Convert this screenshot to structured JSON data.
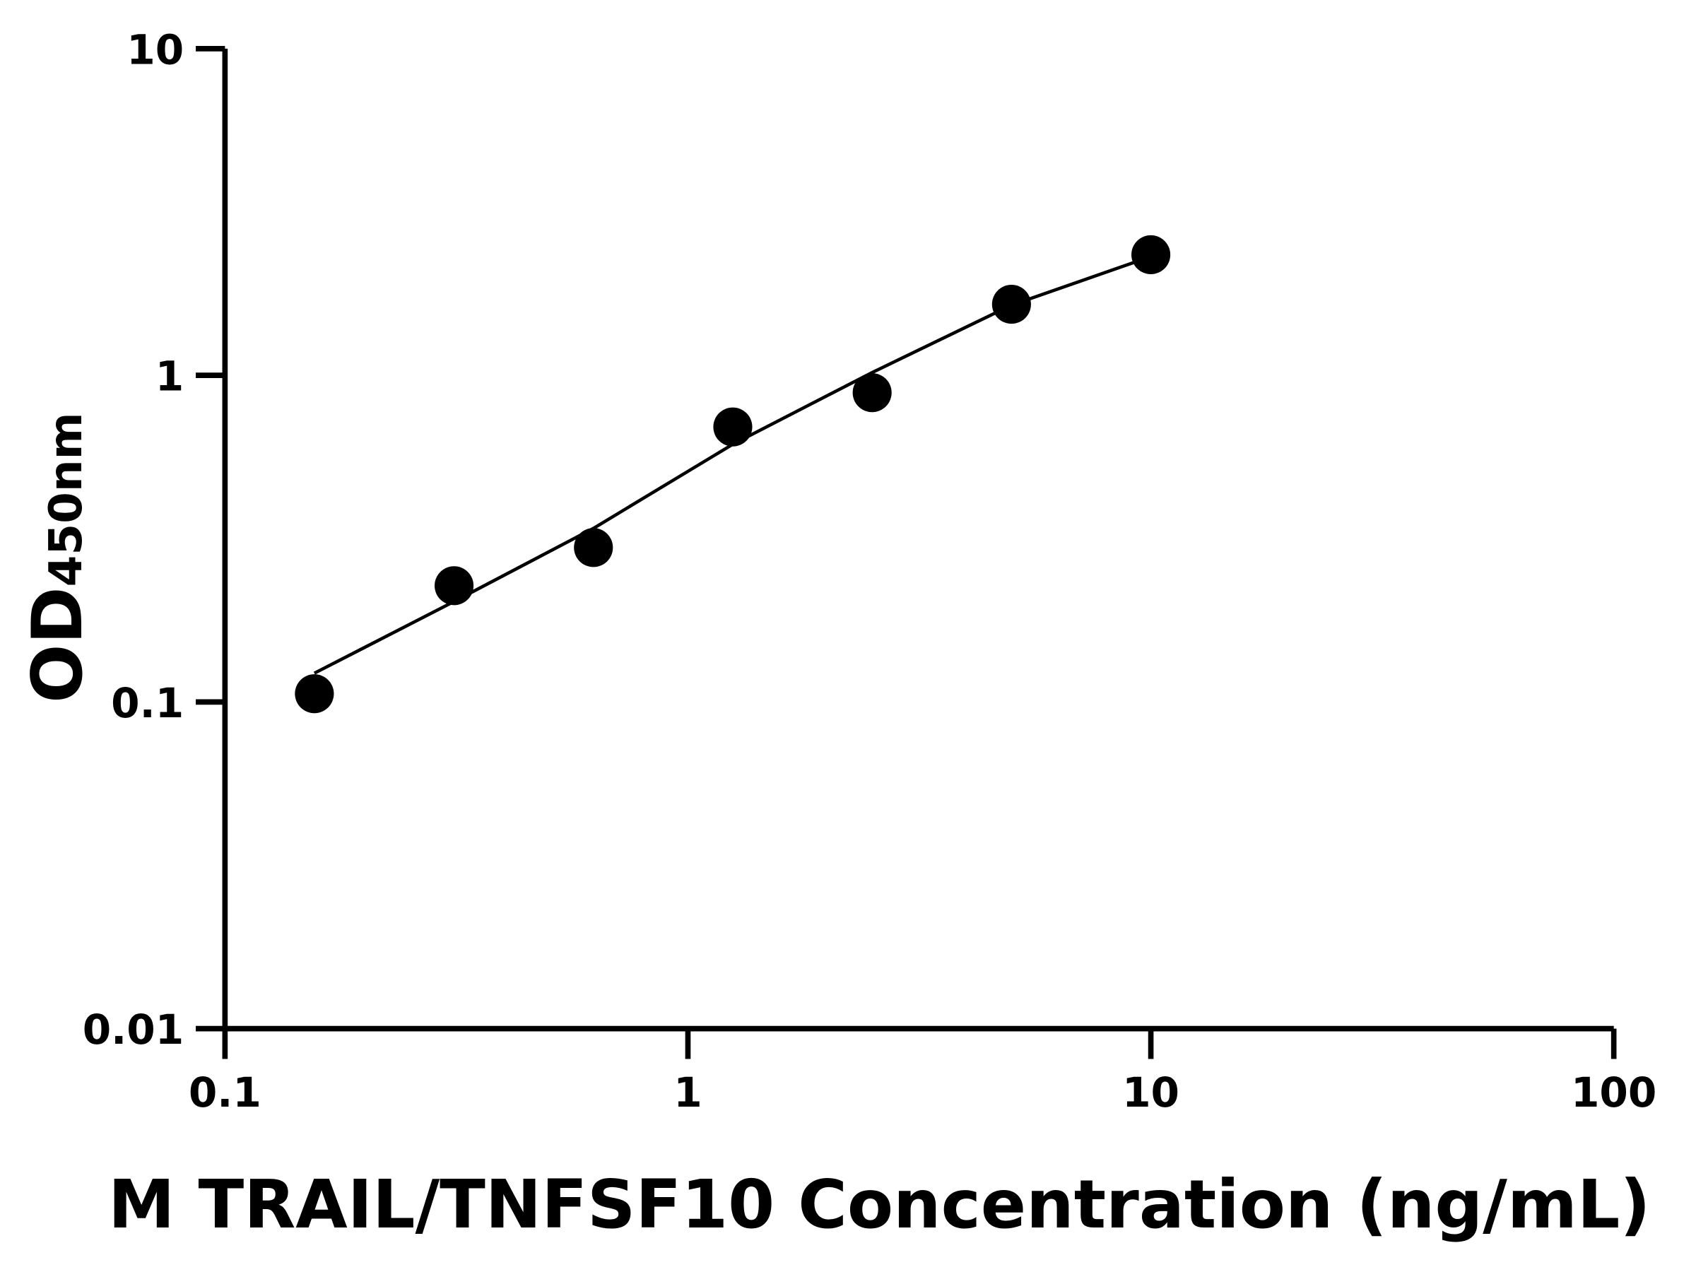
{
  "chart_data": {
    "type": "scatter",
    "x_label": "M TRAIL/TNFSF10 Concentration (ng/mL)",
    "y_label": "OD",
    "y_label_sub": "450nm",
    "log_x": true,
    "log_y": true,
    "xlim": [
      0.1,
      100
    ],
    "xticks": [
      0.1,
      1,
      10,
      100
    ],
    "ylim": [
      0.01,
      10
    ],
    "yticks": [
      0.01,
      0.1,
      1,
      10
    ],
    "color": "#000000",
    "points": {
      "x": [
        0.156,
        0.3125,
        0.625,
        1.25,
        2.5,
        5,
        10
      ],
      "y": [
        0.106,
        0.227,
        0.297,
        0.695,
        0.885,
        1.65,
        2.34
      ]
    },
    "fit": {
      "x": [
        0.156,
        0.3125,
        0.625,
        1.25,
        2.5,
        5,
        10
      ],
      "y": [
        0.1225,
        0.203,
        0.34,
        0.615,
        1.02,
        1.64,
        2.31
      ]
    }
  }
}
